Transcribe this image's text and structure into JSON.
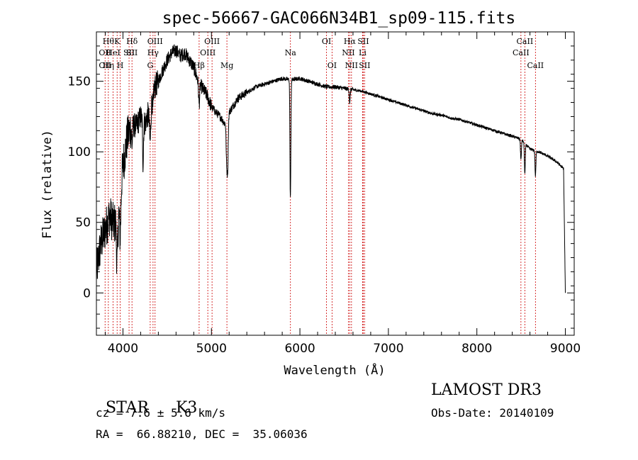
{
  "chart_data": {
    "type": "line",
    "title": "spec-56667-GAC066N34B1_sp09-115.fits",
    "xlabel": "Wavelength (Å)",
    "ylabel": "Flux (relative)",
    "xlim": [
      3700,
      9100
    ],
    "ylim": [
      -30,
      185
    ],
    "xticks": [
      4000,
      5000,
      6000,
      7000,
      8000,
      9000
    ],
    "yticks": [
      0,
      50,
      100,
      150
    ],
    "grid": false,
    "line_color": "#000000",
    "marker_color": "#cc0000",
    "continuum": [
      [
        3700,
        15
      ],
      [
        3750,
        35
      ],
      [
        3800,
        45
      ],
      [
        3850,
        55
      ],
      [
        3900,
        48
      ],
      [
        3950,
        60
      ],
      [
        4000,
        90
      ],
      [
        4050,
        110
      ],
      [
        4100,
        120
      ],
      [
        4150,
        118
      ],
      [
        4200,
        125
      ],
      [
        4250,
        120
      ],
      [
        4300,
        130
      ],
      [
        4350,
        145
      ],
      [
        4400,
        150
      ],
      [
        4450,
        158
      ],
      [
        4500,
        165
      ],
      [
        4550,
        170
      ],
      [
        4600,
        172
      ],
      [
        4650,
        168
      ],
      [
        4700,
        170
      ],
      [
        4750,
        165
      ],
      [
        4800,
        160
      ],
      [
        4850,
        150
      ],
      [
        4900,
        145
      ],
      [
        4950,
        140
      ],
      [
        5000,
        132
      ],
      [
        5050,
        128
      ],
      [
        5100,
        125
      ],
      [
        5150,
        120
      ],
      [
        5200,
        128
      ],
      [
        5250,
        133
      ],
      [
        5300,
        138
      ],
      [
        5400,
        142
      ],
      [
        5500,
        146
      ],
      [
        5600,
        148
      ],
      [
        5700,
        150
      ],
      [
        5800,
        152
      ],
      [
        5900,
        151
      ],
      [
        6000,
        152
      ],
      [
        6100,
        150
      ],
      [
        6200,
        148
      ],
      [
        6300,
        146
      ],
      [
        6400,
        146
      ],
      [
        6500,
        145
      ],
      [
        6600,
        144
      ],
      [
        6700,
        143
      ],
      [
        6800,
        141
      ],
      [
        6900,
        139
      ],
      [
        7000,
        137
      ],
      [
        7100,
        135
      ],
      [
        7200,
        133
      ],
      [
        7300,
        131
      ],
      [
        7400,
        129
      ],
      [
        7500,
        127
      ],
      [
        7600,
        126
      ],
      [
        7700,
        124
      ],
      [
        7800,
        123
      ],
      [
        7900,
        121
      ],
      [
        8000,
        119
      ],
      [
        8100,
        117
      ],
      [
        8200,
        115
      ],
      [
        8300,
        113
      ],
      [
        8400,
        111
      ],
      [
        8500,
        109
      ],
      [
        8600,
        102
      ],
      [
        8700,
        100
      ],
      [
        8800,
        97
      ],
      [
        8900,
        93
      ],
      [
        8980,
        88
      ],
      [
        9000,
        0
      ]
    ],
    "absorption": [
      {
        "x": 3934,
        "depth": 35,
        "w": 8
      },
      {
        "x": 3969,
        "depth": 30,
        "w": 8
      },
      {
        "x": 4102,
        "depth": 15,
        "w": 6
      },
      {
        "x": 4227,
        "depth": 30,
        "w": 5
      },
      {
        "x": 4308,
        "depth": 25,
        "w": 8
      },
      {
        "x": 4340,
        "depth": 12,
        "w": 6
      },
      {
        "x": 4861,
        "depth": 15,
        "w": 6
      },
      {
        "x": 5172,
        "depth": 30,
        "w": 6
      },
      {
        "x": 5184,
        "depth": 35,
        "w": 6
      },
      {
        "x": 5890,
        "depth": 60,
        "w": 4
      },
      {
        "x": 5896,
        "depth": 50,
        "w": 4
      },
      {
        "x": 6563,
        "depth": 10,
        "w": 5
      },
      {
        "x": 8498,
        "depth": 15,
        "w": 5
      },
      {
        "x": 8542,
        "depth": 22,
        "w": 5
      },
      {
        "x": 8662,
        "depth": 18,
        "w": 5
      }
    ],
    "lines": [
      {
        "x": 3798,
        "label": "OII",
        "row": 1
      },
      {
        "x": 3798,
        "label": "OII",
        "row": 2
      },
      {
        "x": 3835,
        "label": "Hθ",
        "row": 0
      },
      {
        "x": 3835,
        "label": "Hη",
        "row": 2
      },
      {
        "x": 3889,
        "label": "HeI",
        "row": 1
      },
      {
        "x": 3934,
        "label": "K",
        "row": 0
      },
      {
        "x": 3969,
        "label": "H",
        "row": 2
      },
      {
        "x": 4069,
        "label": "SII",
        "row": 1
      },
      {
        "x": 4102,
        "label": "Hδ",
        "row": 0
      },
      {
        "x": 4102,
        "label": "SII",
        "row": 1
      },
      {
        "x": 4308,
        "label": "G",
        "row": 2
      },
      {
        "x": 4340,
        "label": "Hγ",
        "row": 1
      },
      {
        "x": 4363,
        "label": "OIII",
        "row": 0
      },
      {
        "x": 4861,
        "label": "Hβ",
        "row": 2
      },
      {
        "x": 4959,
        "label": "OIII",
        "row": 1
      },
      {
        "x": 5007,
        "label": "OIII",
        "row": 0
      },
      {
        "x": 5175,
        "label": "Mg",
        "row": 2
      },
      {
        "x": 5893,
        "label": "Na",
        "row": 1
      },
      {
        "x": 6300,
        "label": "OI",
        "row": 0
      },
      {
        "x": 6363,
        "label": "OI",
        "row": 2
      },
      {
        "x": 6548,
        "label": "NII",
        "row": 1
      },
      {
        "x": 6563,
        "label": "Hα",
        "row": 0
      },
      {
        "x": 6583,
        "label": "NII",
        "row": 2
      },
      {
        "x": 6708,
        "label": "Li",
        "row": 1
      },
      {
        "x": 6716,
        "label": "SII",
        "row": 0
      },
      {
        "x": 6731,
        "label": "SII",
        "row": 2
      },
      {
        "x": 8498,
        "label": "CaII",
        "row": 1
      },
      {
        "x": 8542,
        "label": "CaII",
        "row": 0
      },
      {
        "x": 8662,
        "label": "CaII",
        "row": 2
      }
    ]
  },
  "info": {
    "class_label": "STAR",
    "subclass": "K3",
    "survey": "LAMOST DR3",
    "cz": "cz = 7.6 ± 5.6 km/s",
    "obs_date": "Obs-Date: 20140109",
    "coords": "RA =  66.88210, DEC =  35.06036"
  }
}
